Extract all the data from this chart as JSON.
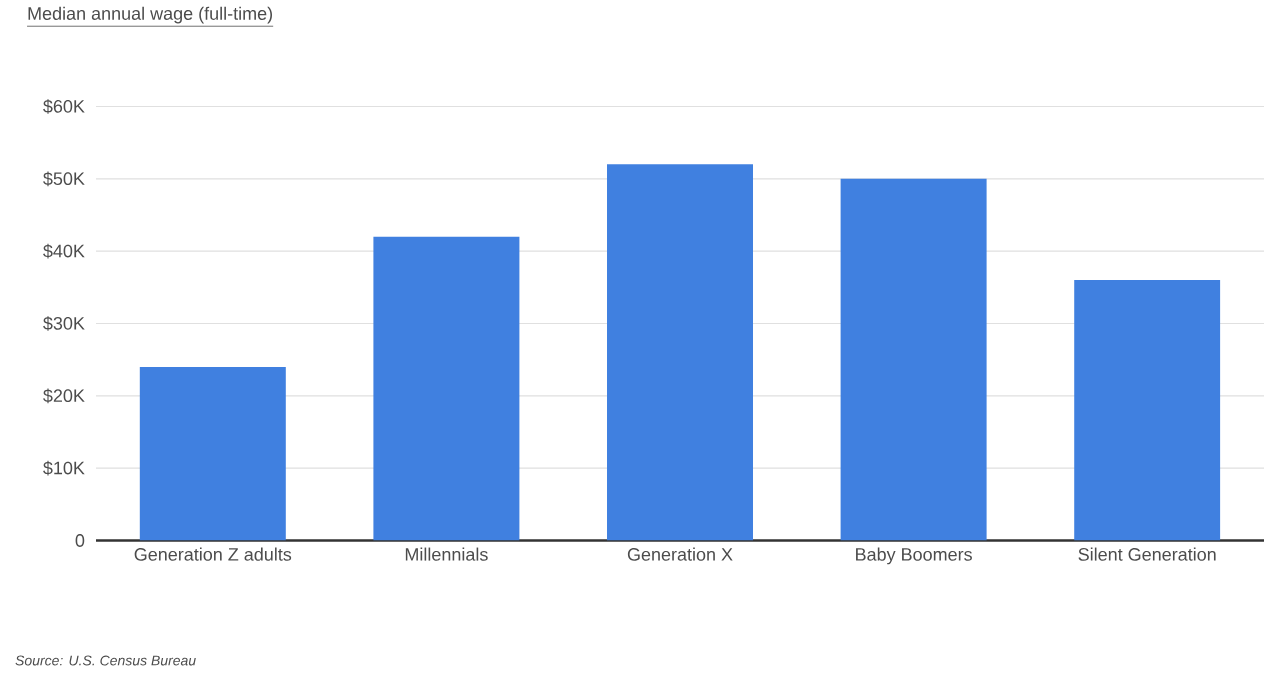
{
  "chart_data": {
    "type": "bar",
    "title": "Median annual wage (full-time)",
    "categories": [
      "Generation Z adults",
      "Millennials",
      "Generation X",
      "Baby Boomers",
      "Silent Generation"
    ],
    "values": [
      24000,
      42000,
      52000,
      50000,
      36000
    ],
    "color": "#4080e0",
    "ylim": [
      0,
      60000
    ],
    "yticks": [
      {
        "value": 0,
        "label": "0"
      },
      {
        "value": 10000,
        "label": "$10K"
      },
      {
        "value": 20000,
        "label": "$20K"
      },
      {
        "value": 30000,
        "label": "$30K"
      },
      {
        "value": 40000,
        "label": "$40K"
      },
      {
        "value": 50000,
        "label": "$50K"
      },
      {
        "value": 60000,
        "label": "$60K"
      }
    ],
    "grid": "y",
    "annotations": [
      "Source:  U.S. Census Bureau"
    ]
  }
}
